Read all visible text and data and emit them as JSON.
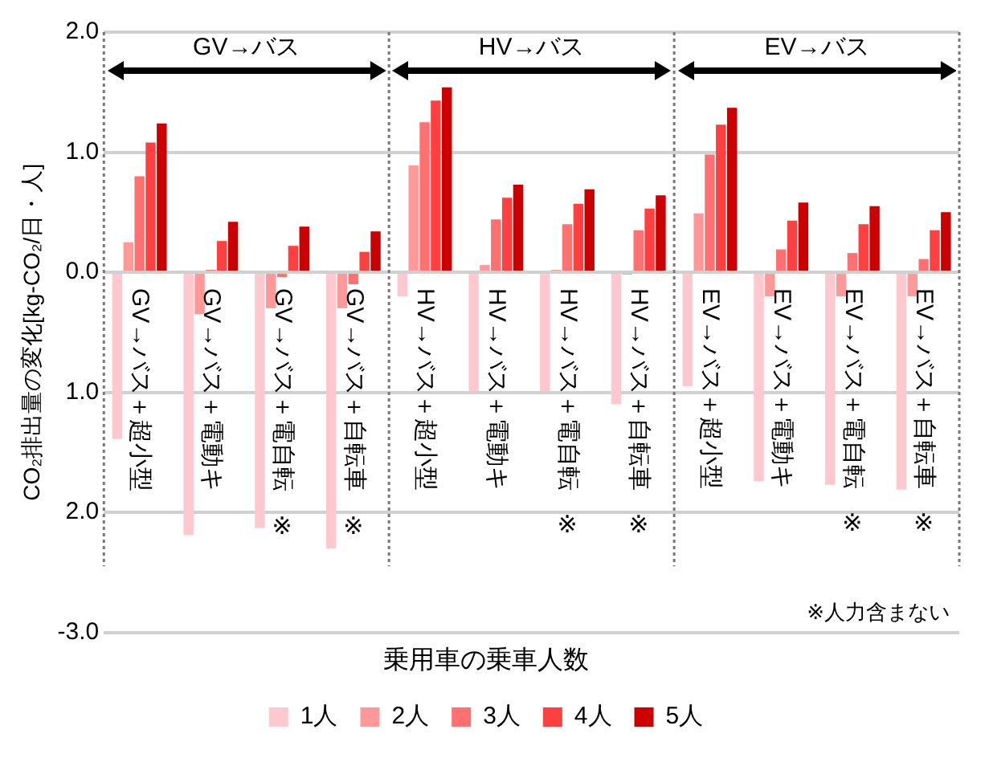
{
  "chart_data": {
    "type": "bar",
    "ylabel": "CO₂排出量の変化[kg-CO₂/日・人]",
    "legend_title": "乗用車の乗車人数",
    "legend": "bottom",
    "grid": "y",
    "categories": [
      "GV→バス＋超小型",
      "GV→バス＋電動キ",
      "GV→バス＋電自転\n※",
      "GV→バス＋自転車\n※",
      "HV→バス＋超小型",
      "HV→バス＋電動キ",
      "HV→バス＋電自転\n※",
      "HV→バス＋自転車\n※",
      "EV→バス＋超小型",
      "EV→バス＋電動キ",
      "EV→バス＋電自転\n※",
      "EV→バス＋自転車\n※"
    ],
    "ylim": [
      -3,
      2
    ],
    "yticks": [
      {
        "value": -3,
        "label": "-3.0"
      },
      {
        "value": -2,
        "label": "2.0"
      },
      {
        "value": -1,
        "label": "1.0"
      },
      {
        "value": 0,
        "label": "0.0"
      },
      {
        "value": 1,
        "label": "1.0"
      },
      {
        "value": 2,
        "label": "2.0"
      }
    ],
    "series": [
      {
        "name": "1人",
        "color": "#ffc7ce",
        "values": [
          -1.39,
          -2.19,
          -2.13,
          -2.3,
          -0.2,
          -0.99,
          -0.99,
          -1.1,
          -0.95,
          -1.74,
          -1.77,
          -1.81
        ]
      },
      {
        "name": "2人",
        "color": "#ff9999",
        "values": [
          0.25,
          -0.35,
          -0.3,
          -0.3,
          0.89,
          0.06,
          0.02,
          -0.02,
          0.49,
          -0.2,
          -0.2,
          -0.2
        ]
      },
      {
        "name": "3人",
        "color": "#ff7070",
        "values": [
          0.8,
          0.02,
          -0.04,
          -0.1,
          1.25,
          0.44,
          0.4,
          0.35,
          0.98,
          0.19,
          0.16,
          0.11
        ]
      },
      {
        "name": "4人",
        "color": "#ff4040",
        "values": [
          1.08,
          0.26,
          0.22,
          0.17,
          1.43,
          0.62,
          0.57,
          0.53,
          1.23,
          0.43,
          0.4,
          0.35
        ]
      },
      {
        "name": "5人",
        "color": "#cc0000",
        "values": [
          1.24,
          0.42,
          0.38,
          0.34,
          1.54,
          0.73,
          0.69,
          0.64,
          1.37,
          0.58,
          0.55,
          0.5
        ]
      }
    ],
    "annotations": [
      "GV→バス",
      "HV→バス",
      "EV→バス",
      "※人力含まない"
    ]
  }
}
